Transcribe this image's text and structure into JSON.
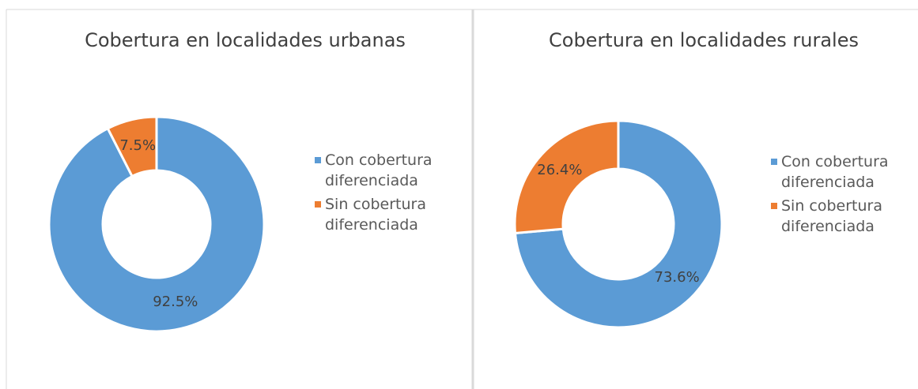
{
  "chart_data": [
    {
      "type": "donut",
      "title": "Cobertura en localidades urbanas",
      "categories": [
        "Con cobertura diferenciada",
        "Sin cobertura diferenciada"
      ],
      "values": [
        92.5,
        7.5
      ],
      "value_labels": [
        "92.5%",
        "7.5%"
      ],
      "colors": [
        "#5b9bd5",
        "#ed7d31"
      ]
    },
    {
      "type": "donut",
      "title": "Cobertura en localidades rurales",
      "categories": [
        "Con cobertura diferenciada",
        "Sin cobertura diferenciada"
      ],
      "values": [
        73.6,
        26.4
      ],
      "value_labels": [
        "73.6%",
        "26.4%"
      ],
      "colors": [
        "#5b9bd5",
        "#ed7d31"
      ]
    }
  ]
}
